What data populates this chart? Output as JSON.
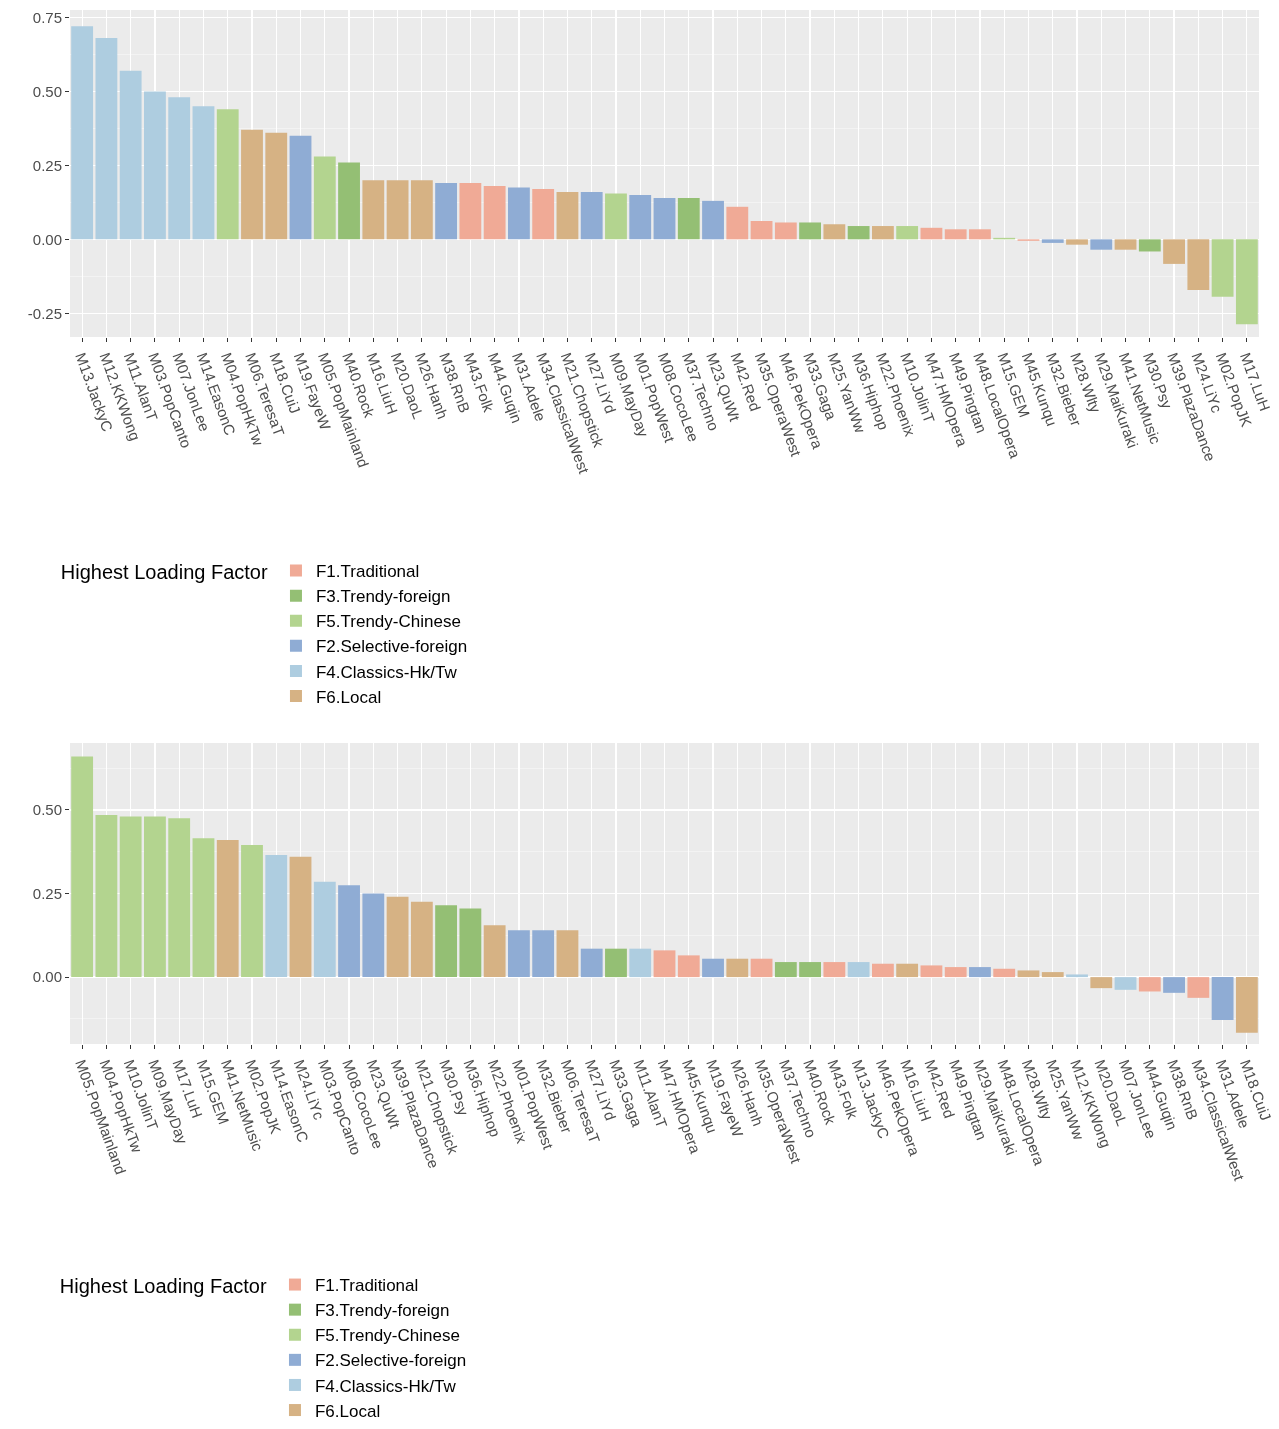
{
  "chart_data": [
    {
      "type": "bar",
      "legend_title": "Highest Loading Factor",
      "legend": "bottom",
      "grid": true,
      "categories": [
        "M13.JackyC",
        "M12.KKWong",
        "M11.AlanT",
        "M03.PopCanto",
        "M07.JonLee",
        "M14.EasonC",
        "M04.PopHkTw",
        "M06.TeresaT",
        "M18.CuiJ",
        "M19.FayeW",
        "M05.PopMainland",
        "M40.Rock",
        "M16.LiuH",
        "M20.DaoL",
        "M26.Hanh",
        "M38.RnB",
        "M43.Folk",
        "M44.Guqin",
        "M31.Adele",
        "M34.ClassicalWest",
        "M21.Chopstick",
        "M27.LiYd",
        "M09.MayDay",
        "M01.PopWest",
        "M08.CocoLee",
        "M37.Techno",
        "M23.QuWt",
        "M42.Red",
        "M35.OperaWest",
        "M46.PekOpera",
        "M33.Gaga",
        "M25.YanWw",
        "M36.Hiphop",
        "M22.Phoenix",
        "M10.JolinT",
        "M47.HMOpera",
        "M49.Pingtan",
        "M48.LocalOpera",
        "M15.GEM",
        "M45.Kunqu",
        "M32.Bieber",
        "M28.Wlty",
        "M29.MaiKuraki",
        "M41.NetMusic",
        "M30.Psy",
        "M39.PlazaDance",
        "M24.LiYc",
        "M02.PopJK",
        "M17.LuH"
      ],
      "ylim": [
        -0.33,
        0.775
      ],
      "yticks": [
        {
          "value": -0.25,
          "label": "-0.25"
        },
        {
          "value": 0,
          "label": "0.00"
        },
        {
          "value": 0.25,
          "label": "0.25"
        },
        {
          "value": 0.5,
          "label": "0.50"
        },
        {
          "value": 0.75,
          "label": "0.75"
        }
      ],
      "series": [
        {
          "name": "F1.Traditional",
          "color": "#f0aa96",
          "values": [
            null,
            null,
            null,
            null,
            null,
            null,
            null,
            null,
            null,
            null,
            null,
            null,
            null,
            null,
            null,
            null,
            0.19,
            0.18,
            null,
            0.17,
            null,
            null,
            null,
            null,
            null,
            null,
            null,
            0.11,
            0.062,
            0.057,
            null,
            null,
            null,
            null,
            null,
            0.039,
            0.034,
            0.034,
            null,
            -0.005,
            null,
            null,
            null,
            null,
            null,
            null,
            null,
            null,
            null
          ]
        },
        {
          "name": "F2.Selective-foreign",
          "color": "#8facd4",
          "values": [
            null,
            null,
            null,
            null,
            null,
            null,
            null,
            null,
            null,
            0.35,
            null,
            null,
            null,
            null,
            null,
            0.19,
            null,
            null,
            0.175,
            null,
            null,
            0.16,
            null,
            0.15,
            0.14,
            null,
            0.13,
            null,
            null,
            null,
            null,
            null,
            null,
            null,
            null,
            null,
            null,
            null,
            null,
            null,
            -0.012,
            null,
            -0.035,
            null,
            null,
            null,
            null,
            null,
            null
          ]
        },
        {
          "name": "F3.Trendy-foreign",
          "color": "#94bf74",
          "values": [
            null,
            null,
            null,
            null,
            null,
            null,
            null,
            null,
            null,
            null,
            null,
            0.26,
            null,
            null,
            null,
            null,
            null,
            null,
            null,
            null,
            null,
            null,
            null,
            null,
            null,
            0.14,
            null,
            null,
            null,
            null,
            0.057,
            null,
            0.045,
            null,
            null,
            null,
            null,
            null,
            null,
            null,
            null,
            null,
            null,
            null,
            -0.041,
            null,
            null,
            null,
            null
          ]
        },
        {
          "name": "F4.Classics-Hk/Tw",
          "color": "#aecde0",
          "values": [
            0.72,
            0.68,
            0.57,
            0.5,
            0.48,
            0.45,
            null,
            null,
            null,
            null,
            null,
            null,
            null,
            null,
            null,
            null,
            null,
            null,
            null,
            null,
            null,
            null,
            null,
            null,
            null,
            null,
            null,
            null,
            null,
            null,
            null,
            null,
            null,
            null,
            null,
            null,
            null,
            null,
            null,
            null,
            null,
            null,
            null,
            null,
            null,
            null,
            null,
            null,
            null
          ]
        },
        {
          "name": "F5.Trendy-Chinese",
          "color": "#b3d48f",
          "values": [
            null,
            null,
            null,
            null,
            null,
            null,
            0.44,
            null,
            null,
            null,
            0.28,
            null,
            null,
            null,
            null,
            null,
            null,
            null,
            null,
            null,
            null,
            null,
            0.155,
            null,
            null,
            null,
            null,
            null,
            null,
            null,
            null,
            null,
            null,
            null,
            0.045,
            null,
            null,
            null,
            0.005,
            null,
            null,
            null,
            null,
            null,
            null,
            null,
            null,
            -0.194,
            -0.287
          ]
        },
        {
          "name": "F6.Local",
          "color": "#d6b284",
          "values": [
            null,
            null,
            null,
            null,
            null,
            null,
            null,
            0.37,
            0.36,
            null,
            null,
            null,
            0.2,
            0.2,
            0.2,
            null,
            null,
            null,
            null,
            null,
            0.16,
            null,
            null,
            null,
            null,
            null,
            null,
            null,
            null,
            null,
            null,
            0.051,
            null,
            0.045,
            null,
            null,
            null,
            null,
            null,
            null,
            null,
            -0.018,
            null,
            -0.035,
            null,
            -0.083,
            -0.171,
            null,
            null
          ]
        }
      ]
    },
    {
      "type": "bar",
      "legend_title": "Highest Loading Factor",
      "legend": "bottom",
      "grid": true,
      "categories": [
        "M05.PopMainland",
        "M04.PopHkTw",
        "M10.JolinT",
        "M09.MayDay",
        "M17.LuH",
        "M15.GEM",
        "M41.NetMusic",
        "M02.PopJK",
        "M14.EasonC",
        "M24.LiYc",
        "M03.PopCanto",
        "M08.CocoLee",
        "M23.QuWt",
        "M39.PlazaDance",
        "M21.Chopstick",
        "M30.Psy",
        "M36.Hiphop",
        "M22.Phoenix",
        "M01.PopWest",
        "M32.Bieber",
        "M06.TeresaT",
        "M27.LiYd",
        "M33.Gaga",
        "M11.AlanT",
        "M47.HMOpera",
        "M45.Kunqu",
        "M19.FayeW",
        "M26.Hanh",
        "M35.OperaWest",
        "M37.Techno",
        "M40.Rock",
        "M43.Folk",
        "M13.JackyC",
        "M46.PekOpera",
        "M16.LiuH",
        "M42.Red",
        "M49.Pingtan",
        "M29.MaiKuraki",
        "M48.LocalOpera",
        "M28.Wlty",
        "M25.YanWw",
        "M12.KKWong",
        "M20.DaoL",
        "M07.JonLee",
        "M44.Guqin",
        "M38.RnB",
        "M34.ClassicalWest",
        "M31.Adele",
        "M18.CuiJ"
      ],
      "ylim": [
        -0.2,
        0.7
      ],
      "yticks": [
        {
          "value": 0,
          "label": "0.00"
        },
        {
          "value": 0.25,
          "label": "0.25"
        },
        {
          "value": 0.5,
          "label": "0.50"
        }
      ],
      "series": [
        {
          "name": "F1.Traditional",
          "color": "#f0aa96",
          "values": [
            null,
            null,
            null,
            null,
            null,
            null,
            null,
            null,
            null,
            null,
            null,
            null,
            null,
            null,
            null,
            null,
            null,
            null,
            null,
            null,
            null,
            null,
            null,
            null,
            0.08,
            0.065,
            null,
            null,
            0.055,
            null,
            null,
            0.045,
            null,
            0.04,
            null,
            0.035,
            0.03,
            null,
            0.025,
            null,
            null,
            null,
            null,
            null,
            -0.043,
            null,
            -0.062,
            null,
            null
          ]
        },
        {
          "name": "F2.Selective-foreign",
          "color": "#8facd4",
          "values": [
            null,
            null,
            null,
            null,
            null,
            null,
            null,
            null,
            null,
            null,
            null,
            0.275,
            0.25,
            null,
            null,
            null,
            null,
            null,
            0.14,
            0.14,
            null,
            0.085,
            null,
            null,
            null,
            null,
            0.055,
            null,
            null,
            null,
            null,
            null,
            null,
            null,
            null,
            null,
            null,
            0.03,
            null,
            null,
            null,
            null,
            null,
            null,
            null,
            -0.047,
            null,
            -0.128,
            null
          ]
        },
        {
          "name": "F3.Trendy-foreign",
          "color": "#94bf74",
          "values": [
            null,
            null,
            null,
            null,
            null,
            null,
            null,
            null,
            null,
            null,
            null,
            null,
            null,
            null,
            null,
            0.215,
            0.205,
            null,
            null,
            null,
            null,
            null,
            0.085,
            null,
            null,
            null,
            null,
            null,
            null,
            0.045,
            0.045,
            null,
            null,
            null,
            null,
            null,
            null,
            null,
            null,
            null,
            null,
            null,
            null,
            null,
            null,
            null,
            null,
            null,
            null
          ]
        },
        {
          "name": "F4.Classics-Hk/Tw",
          "color": "#aecde0",
          "values": [
            null,
            null,
            null,
            null,
            null,
            null,
            null,
            null,
            0.365,
            null,
            0.285,
            null,
            null,
            null,
            null,
            null,
            null,
            null,
            null,
            null,
            null,
            null,
            null,
            0.085,
            null,
            null,
            null,
            null,
            null,
            null,
            null,
            null,
            0.045,
            null,
            null,
            null,
            null,
            null,
            null,
            null,
            null,
            0.008,
            null,
            -0.038,
            null,
            null,
            null,
            null,
            null
          ]
        },
        {
          "name": "F5.Trendy-Chinese",
          "color": "#b3d48f",
          "values": [
            0.66,
            0.485,
            0.48,
            0.48,
            0.475,
            0.415,
            null,
            0.395,
            null,
            null,
            null,
            null,
            null,
            null,
            null,
            null,
            null,
            null,
            null,
            null,
            null,
            null,
            null,
            null,
            null,
            null,
            null,
            null,
            null,
            null,
            null,
            null,
            null,
            null,
            null,
            null,
            null,
            null,
            null,
            null,
            null,
            null,
            null,
            null,
            null,
            null,
            null,
            null,
            null
          ]
        },
        {
          "name": "F6.Local",
          "color": "#d6b284",
          "values": [
            null,
            null,
            null,
            null,
            null,
            null,
            0.41,
            null,
            null,
            0.36,
            null,
            null,
            null,
            0.24,
            0.225,
            null,
            null,
            0.155,
            null,
            null,
            0.14,
            null,
            null,
            null,
            null,
            null,
            null,
            0.055,
            null,
            null,
            null,
            null,
            null,
            null,
            0.04,
            null,
            null,
            null,
            null,
            0.02,
            0.015,
            null,
            -0.033,
            null,
            null,
            null,
            null,
            null,
            -0.166
          ]
        }
      ]
    }
  ]
}
